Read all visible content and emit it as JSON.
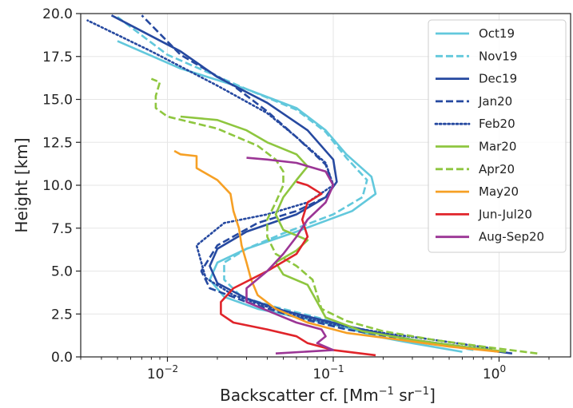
{
  "chart_data": {
    "type": "line",
    "title": "",
    "xlabel_main": "Backscatter cf. [Mm",
    "xlabel_sup1": "−1",
    "xlabel_mid": " sr",
    "xlabel_sup2": "−1",
    "xlabel_end": "]",
    "ylabel": "Height [km]",
    "x_scale": "log",
    "xlim": [
      0.003,
      2.7
    ],
    "ylim": [
      0,
      20
    ],
    "grid": true,
    "legend_position": "top-right",
    "y_ticks": [
      {
        "value": 0,
        "label": "0.0"
      },
      {
        "value": 2.5,
        "label": "2.5"
      },
      {
        "value": 5,
        "label": "5.0"
      },
      {
        "value": 7.5,
        "label": "7.5"
      },
      {
        "value": 10,
        "label": "10.0"
      },
      {
        "value": 12.5,
        "label": "12.5"
      },
      {
        "value": 15,
        "label": "15.0"
      },
      {
        "value": 17.5,
        "label": "17.5"
      },
      {
        "value": 20,
        "label": "20.0"
      }
    ],
    "x_ticks": [
      {
        "value": 0.01,
        "base": "10",
        "exp": "−2"
      },
      {
        "value": 0.1,
        "base": "10",
        "exp": "−1"
      },
      {
        "value": 1,
        "base": "10",
        "exp": "0"
      }
    ],
    "series": [
      {
        "name": "Oct19",
        "color": "#62c8dc",
        "dash": "solid",
        "x": [
          0.6,
          0.3,
          0.18,
          0.12,
          0.07,
          0.035,
          0.022,
          0.018,
          0.02,
          0.03,
          0.06,
          0.13,
          0.18,
          0.17,
          0.12,
          0.09,
          0.06,
          0.03,
          0.012,
          0.005
        ],
        "y": [
          0.3,
          0.8,
          1.2,
          1.7,
          2.2,
          2.8,
          3.5,
          4.5,
          5.5,
          6.3,
          7.3,
          8.5,
          9.5,
          10.5,
          11.8,
          13.2,
          14.5,
          15.6,
          16.8,
          18.4
        ]
      },
      {
        "name": "Nov19",
        "color": "#62c8dc",
        "dash": "dashed",
        "x": [
          0.7,
          0.35,
          0.2,
          0.12,
          0.08,
          0.045,
          0.028,
          0.022,
          0.022,
          0.03,
          0.05,
          0.1,
          0.15,
          0.16,
          0.12,
          0.09,
          0.06,
          0.03,
          0.01,
          0.005
        ],
        "y": [
          0.4,
          0.9,
          1.3,
          1.8,
          2.3,
          2.9,
          3.5,
          4.5,
          5.5,
          6.3,
          7.2,
          8.3,
          9.3,
          10.3,
          11.6,
          13.1,
          14.4,
          15.6,
          17.6,
          19.8
        ]
      },
      {
        "name": "Dec19",
        "color": "#2649a0",
        "dash": "solid",
        "x": [
          1.2,
          0.6,
          0.3,
          0.15,
          0.09,
          0.05,
          0.03,
          0.02,
          0.018,
          0.02,
          0.03,
          0.06,
          0.09,
          0.105,
          0.1,
          0.07,
          0.04,
          0.02,
          0.012,
          0.0046
        ],
        "y": [
          0.2,
          0.6,
          1.0,
          1.6,
          2.1,
          2.7,
          3.4,
          4.3,
          5.3,
          6.3,
          7.3,
          8.3,
          9.3,
          10.2,
          11.5,
          13.2,
          14.8,
          16.3,
          17.8,
          19.9
        ]
      },
      {
        "name": "Jan20",
        "color": "#2649a0",
        "dash": "dashed",
        "x": [
          1.0,
          0.5,
          0.25,
          0.12,
          0.06,
          0.03,
          0.018,
          0.016,
          0.02,
          0.035,
          0.06,
          0.09,
          0.1,
          0.09,
          0.06,
          0.04,
          0.025,
          0.012,
          0.007
        ],
        "y": [
          0.3,
          0.7,
          1.1,
          1.6,
          2.3,
          3.2,
          4.0,
          5.0,
          6.5,
          7.8,
          8.5,
          9.3,
          10.0,
          11.2,
          12.8,
          14.3,
          15.8,
          17.6,
          19.9
        ]
      },
      {
        "name": "Feb20",
        "color": "#2649a0",
        "dash": "dotted",
        "x": [
          0.9,
          0.4,
          0.2,
          0.1,
          0.05,
          0.025,
          0.017,
          0.015,
          0.022,
          0.04,
          0.07,
          0.1,
          0.09,
          0.06,
          0.04,
          0.02,
          0.008,
          0.0033
        ],
        "y": [
          0.5,
          1.0,
          1.4,
          1.9,
          2.6,
          3.6,
          4.6,
          6.5,
          7.8,
          8.3,
          9.0,
          10.0,
          11.3,
          12.8,
          14.2,
          15.8,
          17.8,
          19.6
        ]
      },
      {
        "name": "Mar20",
        "color": "#8ec63f",
        "dash": "solid",
        "x": [
          1.1,
          0.6,
          0.3,
          0.15,
          0.09,
          0.08,
          0.07,
          0.05,
          0.045,
          0.06,
          0.07,
          0.05,
          0.045,
          0.05,
          0.06,
          0.07,
          0.06,
          0.04,
          0.03,
          0.02,
          0.012
        ],
        "y": [
          0.3,
          0.6,
          1.0,
          1.5,
          2.3,
          3.2,
          4.2,
          4.8,
          5.5,
          6.2,
          6.8,
          7.4,
          8.3,
          9.3,
          10.3,
          11.1,
          11.8,
          12.5,
          13.2,
          13.8,
          14.0
        ]
      },
      {
        "name": "Apr20",
        "color": "#8ec63f",
        "dash": "dashed",
        "x": [
          1.7,
          0.8,
          0.4,
          0.2,
          0.12,
          0.085,
          0.08,
          0.075,
          0.06,
          0.045,
          0.04,
          0.04,
          0.045,
          0.05,
          0.05,
          0.045,
          0.035,
          0.02,
          0.01,
          0.0085,
          0.0085,
          0.009,
          0.008
        ],
        "y": [
          0.2,
          0.6,
          1.0,
          1.5,
          2.1,
          2.8,
          3.6,
          4.5,
          5.3,
          6.0,
          7.0,
          8.0,
          9.0,
          10.0,
          10.8,
          11.5,
          12.3,
          13.3,
          14.0,
          14.5,
          15.2,
          16.0,
          16.2
        ]
      },
      {
        "name": "May20",
        "color": "#f6a025",
        "dash": "solid",
        "x": [
          1.0,
          0.5,
          0.25,
          0.12,
          0.07,
          0.045,
          0.035,
          0.032,
          0.03,
          0.028,
          0.027,
          0.025,
          0.024,
          0.02,
          0.015,
          0.015,
          0.012,
          0.011
        ],
        "y": [
          0.3,
          0.6,
          1.0,
          1.4,
          2.0,
          2.8,
          3.6,
          4.5,
          5.5,
          6.5,
          7.5,
          8.5,
          9.5,
          10.3,
          11.0,
          11.7,
          11.8,
          12.0
        ]
      },
      {
        "name": "Jun-Jul20",
        "color": "#e0242a",
        "dash": "solid",
        "x": [
          0.18,
          0.1,
          0.07,
          0.06,
          0.04,
          0.025,
          0.021,
          0.021,
          0.025,
          0.04,
          0.06,
          0.07,
          0.065,
          0.07,
          0.085,
          0.07,
          0.06
        ],
        "y": [
          0.1,
          0.4,
          0.8,
          1.2,
          1.6,
          2.0,
          2.5,
          3.2,
          4.0,
          5.0,
          6.0,
          7.0,
          8.0,
          9.0,
          9.5,
          10.0,
          10.2
        ]
      },
      {
        "name": "Aug-Sep20",
        "color": "#9b3595",
        "dash": "solid",
        "x": [
          0.045,
          0.1,
          0.08,
          0.09,
          0.085,
          0.06,
          0.045,
          0.03,
          0.03,
          0.04,
          0.05,
          0.06,
          0.07,
          0.09,
          0.1,
          0.09,
          0.06,
          0.04,
          0.03
        ],
        "y": [
          0.2,
          0.4,
          0.8,
          1.2,
          1.6,
          2.0,
          2.5,
          3.2,
          4.0,
          5.0,
          6.0,
          7.0,
          8.0,
          9.0,
          10.0,
          10.8,
          11.3,
          11.5,
          11.6
        ]
      }
    ]
  }
}
